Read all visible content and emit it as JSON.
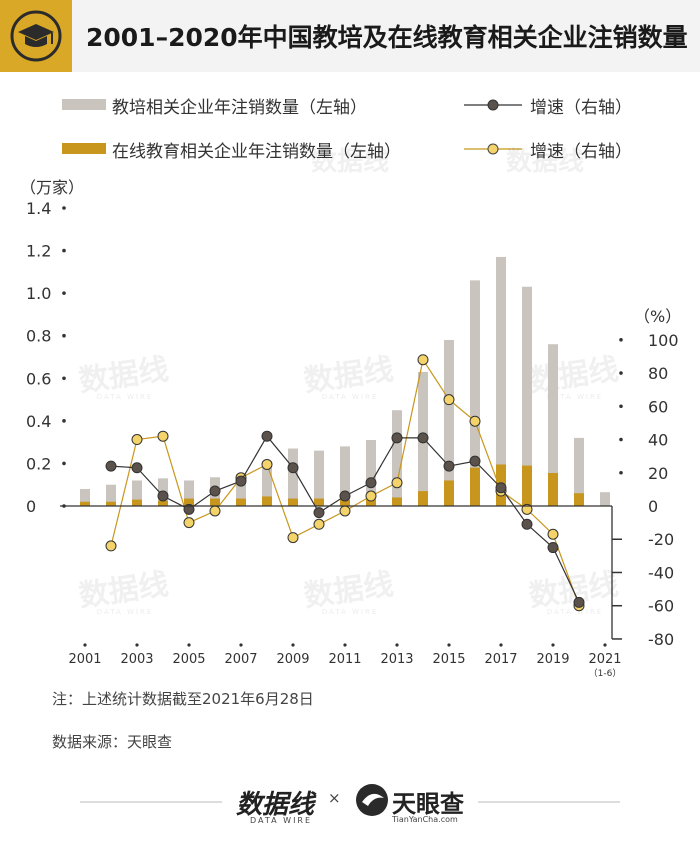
{
  "header": {
    "title": "2001–2020年中国教培及在线教育相关企业注销数量",
    "icon": "graduation-cap-icon"
  },
  "legend": {
    "bar_total": "教培相关企业年注销数量（左轴）",
    "bar_online": "在线教育相关企业年注销数量（左轴）",
    "line_total": "增速（右轴）",
    "line_online": "增速（右轴）"
  },
  "colors": {
    "accent": "#d9a826",
    "bar_total": "#c9c4be",
    "bar_online": "#c8961c",
    "line_total": "#333333",
    "line_total_marker": "#5a524b",
    "line_online": "#c8961c",
    "line_online_marker": "#f4d36a"
  },
  "chart_data": {
    "type": "bar+line",
    "left_axis": {
      "unit": "（万家）",
      "ylim": [
        0,
        1.4
      ],
      "ticks": [
        "0",
        "0.2",
        "0.4",
        "0.6",
        "0.8",
        "1.0",
        "1.2",
        "1.4"
      ]
    },
    "right_axis": {
      "unit": "（%）",
      "ylim": [
        -80,
        100
      ],
      "ticks": [
        "-80",
        "-60",
        "-40",
        "-20",
        "0",
        "20",
        "40",
        "60",
        "80",
        "100"
      ]
    },
    "x_ticks": [
      "2001",
      "2003",
      "2005",
      "2007",
      "2009",
      "2011",
      "2013",
      "2015",
      "2017",
      "2019",
      "2021"
    ],
    "x_tick_sub": "（1-6）",
    "categories": [
      2001,
      2002,
      2003,
      2004,
      2005,
      2006,
      2007,
      2008,
      2009,
      2010,
      2011,
      2012,
      2013,
      2014,
      2015,
      2016,
      2017,
      2018,
      2019,
      2020,
      2021
    ],
    "series": [
      {
        "name": "教培相关企业年注销数量（左轴）",
        "kind": "bar",
        "values": [
          0.08,
          0.1,
          0.12,
          0.13,
          0.12,
          0.135,
          0.15,
          0.21,
          0.27,
          0.26,
          0.28,
          0.31,
          0.45,
          0.63,
          0.78,
          1.06,
          1.17,
          1.03,
          0.76,
          0.32,
          0.065
        ]
      },
      {
        "name": "在线教育相关企业年注销数量（左轴）",
        "kind": "bar",
        "values": [
          0.02,
          0.02,
          0.03,
          0.025,
          0.035,
          0.035,
          0.035,
          0.045,
          0.035,
          0.035,
          0.03,
          0.03,
          0.04,
          0.07,
          0.12,
          0.18,
          0.195,
          0.19,
          0.155,
          0.06,
          null
        ]
      },
      {
        "name": "增速（右轴）",
        "kind": "line",
        "x": [
          2002,
          2003,
          2004,
          2005,
          2006,
          2007,
          2008,
          2009,
          2010,
          2011,
          2012,
          2013,
          2014,
          2015,
          2016,
          2017,
          2018,
          2019,
          2020
        ],
        "values": [
          24,
          23,
          6,
          -2,
          9,
          15,
          42,
          23,
          -4,
          6,
          14,
          41,
          41,
          24,
          27,
          11,
          -11,
          -25,
          -58
        ]
      },
      {
        "name": "增速（右轴）",
        "kind": "line",
        "x": [
          2002,
          2003,
          2004,
          2005,
          2006,
          2007,
          2008,
          2009,
          2010,
          2011,
          2012,
          2013,
          2014,
          2015,
          2016,
          2017,
          2018,
          2019,
          2020
        ],
        "values": [
          -24,
          40,
          42,
          -10,
          -3,
          17,
          25,
          -19,
          -11,
          -3,
          6,
          14,
          88,
          64,
          51,
          9,
          -2,
          -17,
          -60
        ]
      }
    ]
  },
  "notes": {
    "note": "注：上述统计数据截至2021年6月28日",
    "source": "数据来源：天眼查"
  },
  "footer": {
    "brand_left": "数据线",
    "brand_left_sub": "DATA WIRE",
    "times": "×",
    "brand_right": "天眼查",
    "brand_right_sub": "TianYanCha.com"
  },
  "watermark": {
    "text": "数据线",
    "sub": "DATA WIRE"
  }
}
